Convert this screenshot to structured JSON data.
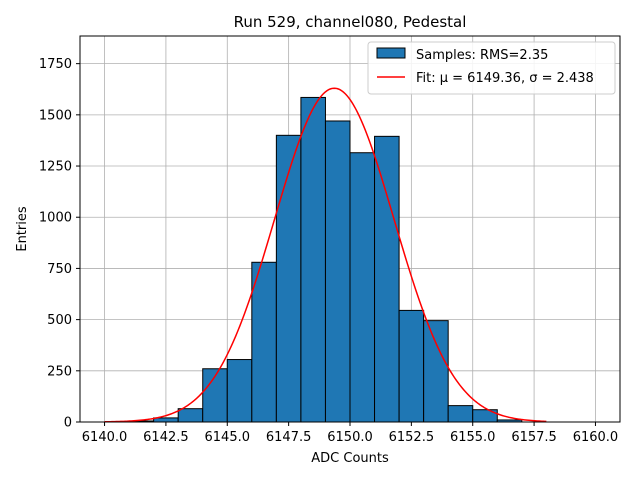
{
  "chart_data": {
    "type": "bar",
    "title": "Run 529, channel080, Pedestal",
    "xlabel": "ADC Counts",
    "ylabel": "Entries",
    "xlim": [
      6139.0,
      6161.0
    ],
    "ylim": [
      0,
      1885
    ],
    "grid": true,
    "legend_position": "top-right",
    "x_ticks": [
      6140.0,
      6142.5,
      6145.0,
      6147.5,
      6150.0,
      6152.5,
      6155.0,
      6157.5,
      6160.0
    ],
    "x_tick_labels": [
      "6140.0",
      "6142.5",
      "6145.0",
      "6147.5",
      "6150.0",
      "6152.5",
      "6155.0",
      "6157.5",
      "6160.0"
    ],
    "y_ticks": [
      0,
      250,
      500,
      750,
      1000,
      1250,
      1500,
      1750
    ],
    "y_tick_labels": [
      "0",
      "250",
      "500",
      "750",
      "1000",
      "1250",
      "1500",
      "1750"
    ],
    "histogram": {
      "name": "Samples: RMS=2.35",
      "bin_edges": [
        6140,
        6141,
        6142,
        6143,
        6144,
        6145,
        6146,
        6147,
        6148,
        6149,
        6150,
        6151,
        6152,
        6153,
        6154,
        6155,
        6156,
        6157,
        6158
      ],
      "counts": [
        0,
        5,
        20,
        65,
        260,
        305,
        780,
        1400,
        1585,
        1470,
        1315,
        1395,
        545,
        495,
        80,
        60,
        10,
        0
      ],
      "color": "#1f77b4",
      "edge_color": "#000000"
    },
    "fit": {
      "name": "Fit: μ = 6149.36, σ = 2.438",
      "mu": 6149.36,
      "sigma": 2.438,
      "amplitude": 1630,
      "x_range": [
        6140,
        6158
      ],
      "color": "#ff0000"
    }
  }
}
